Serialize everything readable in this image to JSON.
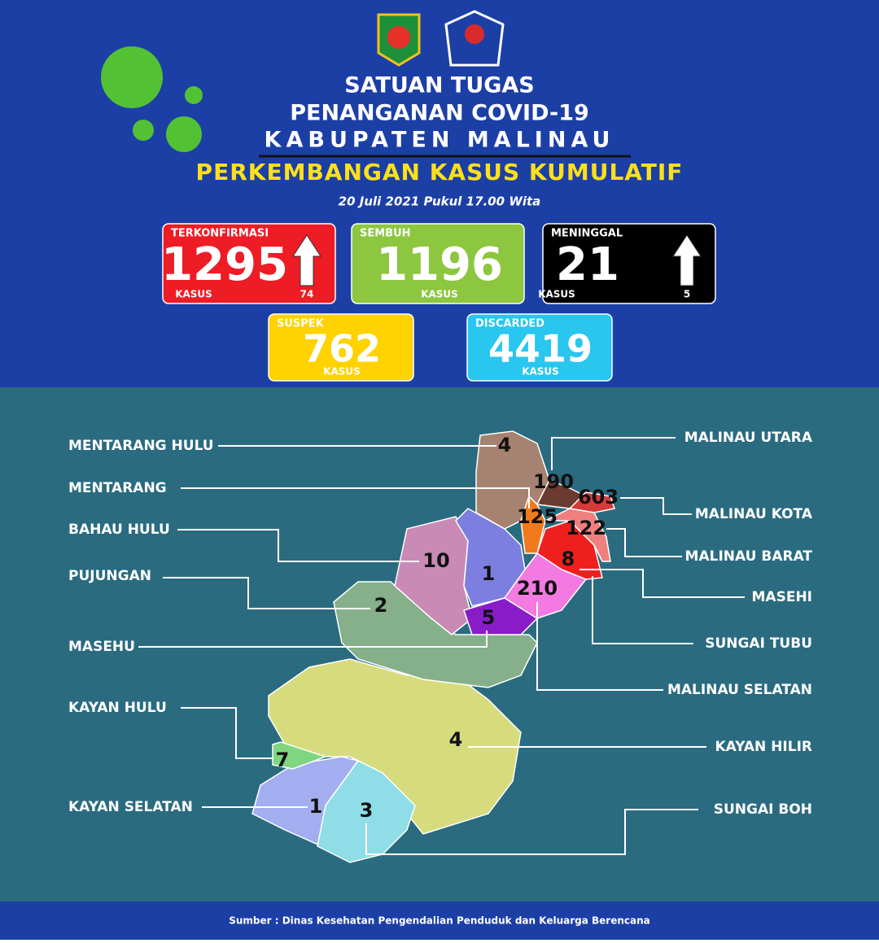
{
  "header": {
    "title_lines": [
      "SATUAN TUGAS",
      "PENANGANAN COVID-19",
      "KABUPATEN MALINAU"
    ],
    "subtitle": "PERKEMBANGAN KASUS KUMULATIF",
    "date": "20 Juli 2021 Pukul 17.00 Wita"
  },
  "cards": [
    {
      "label": "TERKONFIRMASI",
      "value": 1295,
      "unit": "KASUS",
      "increase": 74
    },
    {
      "label": "SEMBUH",
      "value": 1196,
      "unit": "KASUS"
    },
    {
      "label": "MENINGGAL",
      "value": 21,
      "unit": "KASUS",
      "increase": 5
    },
    {
      "label": "SUSPEK",
      "value": 762,
      "unit": "KASUS"
    },
    {
      "label": "DISCARDED",
      "value": 4419,
      "unit": "KASUS"
    }
  ],
  "districts": [
    {
      "name": "MENTARANG HULU",
      "value": 4
    },
    {
      "name": "MENTARANG",
      "value": 125
    },
    {
      "name": "BAHAU HULU",
      "value": 10
    },
    {
      "name": "PUJUNGAN",
      "value": 2
    },
    {
      "name": "MASEHU",
      "value": 5
    },
    {
      "name": "KAYAN HULU",
      "value": 7
    },
    {
      "name": "KAYAN SELATAN",
      "value": 1
    },
    {
      "name": "MALINAU UTARA",
      "value": 190
    },
    {
      "name": "MALINAU KOTA",
      "value": 603
    },
    {
      "name": "MALINAU BARAT",
      "value": 122
    },
    {
      "name": "MASEHI",
      "value": 8
    },
    {
      "name": "SUNGAI TUBU",
      "value": 1
    },
    {
      "name": "MALINAU SELATAN",
      "value": 210
    },
    {
      "name": "KAYAN HILIR",
      "value": 4
    },
    {
      "name": "SUNGAI BOH",
      "value": 3
    }
  ],
  "source": "Sumber : Dinas Kesehatan Pengendalian Penduduk dan Keluarga Berencana"
}
